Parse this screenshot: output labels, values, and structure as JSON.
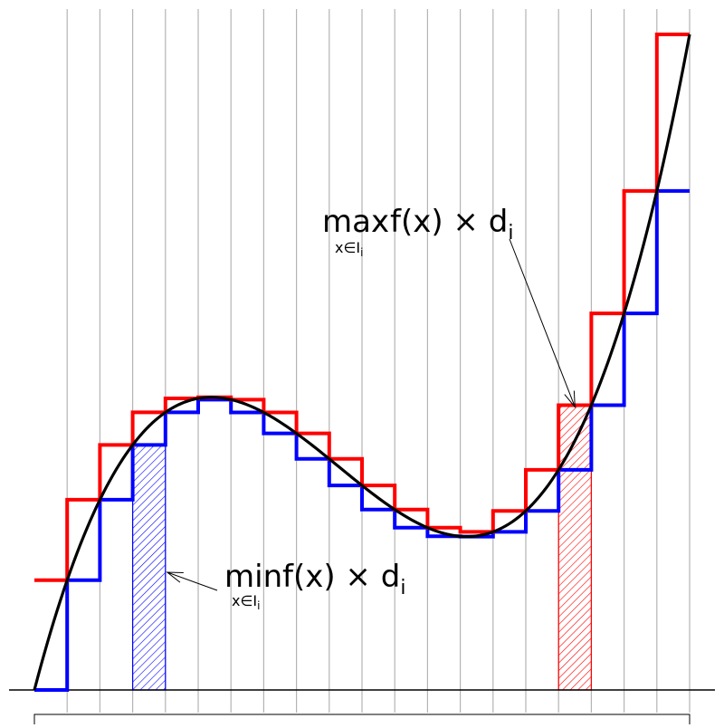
{
  "diagram": {
    "colors": {
      "curve": "#000000",
      "upper_sum": "#ff0000",
      "lower_sum": "#0000ff",
      "grid": "#b4b4b4",
      "axis": "#000000",
      "caption_box_border": "#000000"
    },
    "x_domain": [
      0,
      1
    ],
    "y_domain": [
      0,
      1
    ],
    "intervals": 20,
    "curve_function": "cubic-with-local-max-and-min",
    "max_label": {
      "op": "max",
      "sub": "x∈I",
      "sub_index": "i",
      "expr": "f(x) × d",
      "expr_index": "i"
    },
    "min_label": {
      "op": "min",
      "sub": "x∈I",
      "sub_index": "i",
      "expr": "f(x) × d",
      "expr_index": "i"
    },
    "highlighted_intervals": {
      "min_interval_index": 3,
      "max_interval_index": 16
    }
  }
}
